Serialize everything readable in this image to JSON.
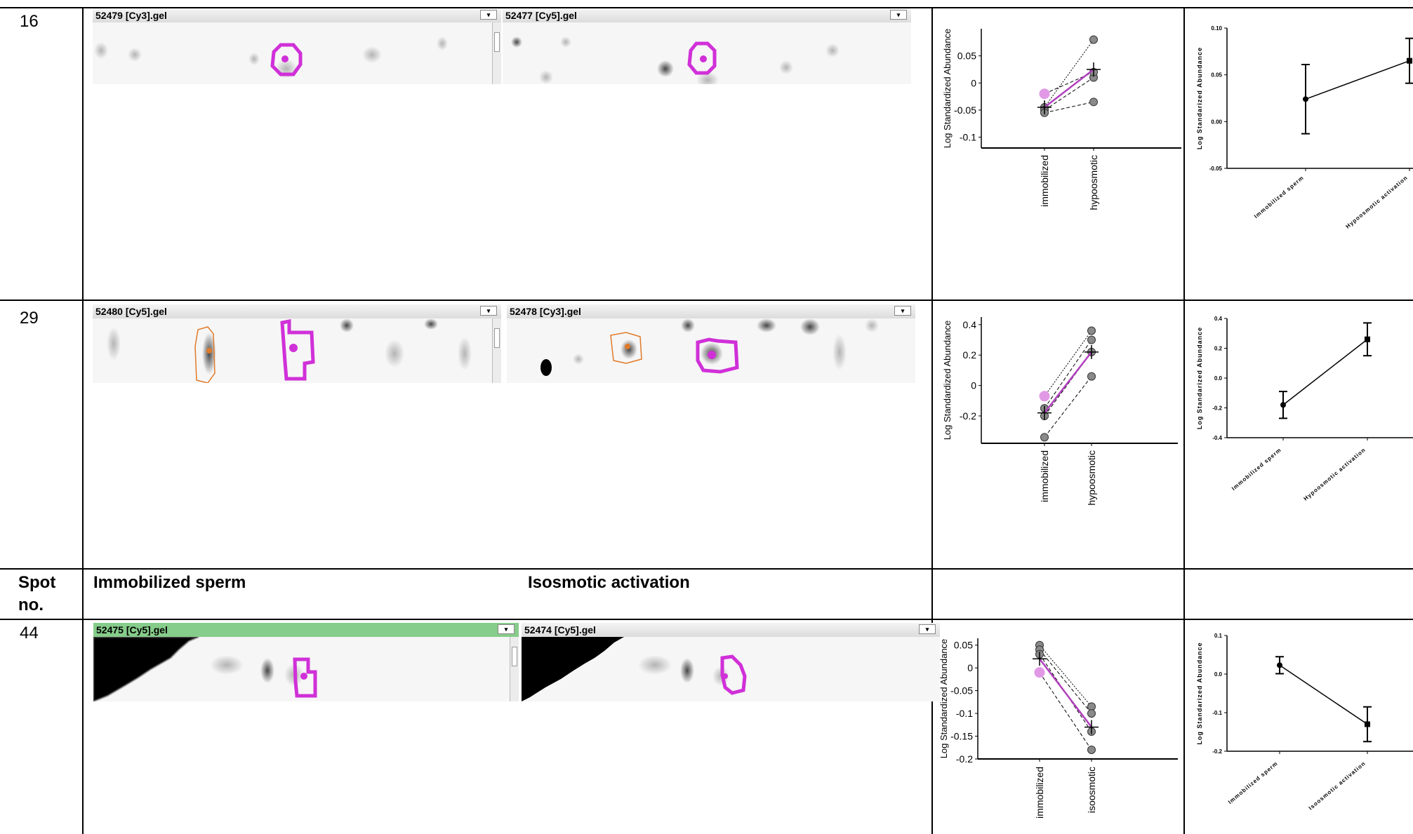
{
  "rows": [
    {
      "spot_no": "16",
      "gels": [
        {
          "title": "52479 [Cy3].gel",
          "header_style": "normal"
        },
        {
          "title": "52477 [Cy5].gel",
          "header_style": "normal"
        }
      ],
      "dia_plot": {
        "ylabel": "Log Standardized Abundance",
        "yticks": [
          "0.05",
          "0",
          "-0.05",
          "-0.1"
        ],
        "ytick_values": [
          0.05,
          0,
          -0.05,
          -0.1
        ],
        "ylim": [
          -0.12,
          0.1
        ],
        "categories": [
          "immobilized",
          "hypoosmotic"
        ],
        "pairs": [
          [
            -0.045,
            0.08
          ],
          [
            -0.05,
            0.01
          ],
          [
            -0.02,
            0.02
          ],
          [
            -0.055,
            -0.035
          ]
        ],
        "means": [
          -0.045,
          0.025
        ]
      },
      "graph_plot": {
        "ylabel": "Log Standarized Abundance",
        "yticks": [
          "0.10",
          "0.05",
          "0.00",
          "-0.05"
        ],
        "ytick_values": [
          0.1,
          0.05,
          0,
          -0.05
        ],
        "ylim": [
          -0.05,
          0.1
        ],
        "categories": [
          "Immobilized sperm",
          "Hypoosmotic activation"
        ],
        "means": [
          0.024,
          0.065
        ],
        "errors": [
          0.037,
          0.024
        ]
      }
    },
    {
      "spot_no": "29",
      "gels": [
        {
          "title": "52480 [Cy5].gel",
          "header_style": "normal"
        },
        {
          "title": "52478 [Cy3].gel",
          "header_style": "normal"
        }
      ],
      "dia_plot": {
        "ylabel": "Log Standardized Abundance",
        "yticks": [
          "0.4",
          "0.2",
          "0",
          "-0.2"
        ],
        "ytick_values": [
          0.4,
          0.2,
          0,
          -0.2
        ],
        "ylim": [
          -0.38,
          0.45
        ],
        "categories": [
          "immobilized",
          "hypoosmotic"
        ],
        "pairs": [
          [
            -0.07,
            0.36
          ],
          [
            -0.15,
            0.3
          ],
          [
            -0.2,
            0.22
          ],
          [
            -0.34,
            0.06
          ]
        ],
        "means": [
          -0.18,
          0.22
        ]
      },
      "graph_plot": {
        "ylabel": "Log Standarized Abundance",
        "yticks": [
          "0.4",
          "0.2",
          "0.0",
          "-0.2",
          "-0.4"
        ],
        "ytick_values": [
          0.4,
          0.2,
          0,
          -0.2,
          -0.4
        ],
        "ylim": [
          -0.4,
          0.4
        ],
        "categories": [
          "Immobilized sperm",
          "Hypoosmotic activation"
        ],
        "means": [
          -0.18,
          0.26
        ],
        "errors": [
          0.09,
          0.11
        ]
      }
    },
    {
      "spot_no": "44",
      "gels": [
        {
          "title": "52475 [Cy5].gel",
          "header_style": "selected"
        },
        {
          "title": "52474 [Cy5].gel",
          "header_style": "normal"
        }
      ],
      "dia_plot": {
        "ylabel": "Log Standardized Abundance",
        "yticks": [
          "0.05",
          "0",
          "-0.05",
          "-0.1",
          "-0.15",
          "-0.2"
        ],
        "ytick_values": [
          0.05,
          0,
          -0.05,
          -0.1,
          -0.15,
          -0.2
        ],
        "ylim": [
          -0.2,
          0.065
        ],
        "categories": [
          "immobilized",
          "isoosmotic"
        ],
        "pairs": [
          [
            0.05,
            -0.085
          ],
          [
            0.04,
            -0.1
          ],
          [
            0.03,
            -0.14
          ],
          [
            -0.01,
            -0.18
          ]
        ],
        "means": [
          0.02,
          -0.13
        ]
      },
      "graph_plot": {
        "ylabel": "Log Standarized Abundance",
        "yticks": [
          "0.1",
          "0.0",
          "-0.1",
          "-0.2"
        ],
        "ytick_values": [
          0.1,
          0,
          -0.1,
          -0.2
        ],
        "ylim": [
          -0.2,
          0.1
        ],
        "categories": [
          "Immobilized sperm",
          "Isoosmotic activation"
        ],
        "means": [
          0.023,
          -0.13
        ],
        "errors": [
          0.022,
          0.045
        ]
      }
    }
  ],
  "header_row": {
    "spot_label_line1": "Spot",
    "spot_label_line2": "no.",
    "group1": "Immobilized sperm",
    "group2": "Isosmotic activation"
  },
  "colors": {
    "outline_magenta": "#d030d8",
    "outline_orange": "#e07a2a",
    "selected_header_green": "#86cc8a",
    "mean_line": "#b13fbe"
  }
}
